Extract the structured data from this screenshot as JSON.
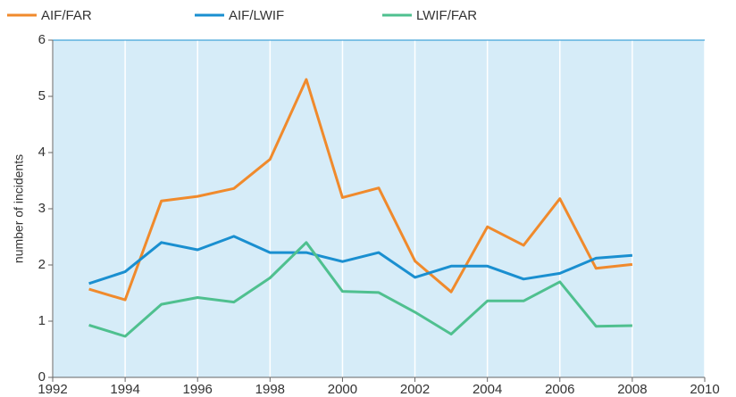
{
  "chart_data": {
    "type": "line",
    "y_label": "number of incidents",
    "x": [
      1993,
      1994,
      1995,
      1996,
      1997,
      1998,
      1999,
      2000,
      2001,
      2002,
      2003,
      2004,
      2005,
      2006,
      2007,
      2008
    ],
    "series": [
      {
        "name": "AIF/FAR",
        "color": "#f08a2c",
        "values": [
          1.57,
          1.38,
          3.14,
          3.22,
          3.36,
          3.88,
          5.3,
          3.2,
          3.37,
          2.07,
          1.52,
          2.68,
          2.35,
          3.18,
          1.94,
          2.01
        ]
      },
      {
        "name": "AIF/LWIF",
        "color": "#1a8fd0",
        "values": [
          1.67,
          1.88,
          2.4,
          2.27,
          2.51,
          2.22,
          2.22,
          2.06,
          2.22,
          1.78,
          1.98,
          1.98,
          1.75,
          1.85,
          2.12,
          2.17
        ]
      },
      {
        "name": "LWIF/FAR",
        "color": "#4fc08f",
        "values": [
          0.93,
          0.73,
          1.3,
          1.42,
          1.34,
          1.77,
          2.4,
          1.53,
          1.51,
          1.16,
          0.77,
          1.36,
          1.36,
          1.7,
          0.91,
          0.92
        ]
      }
    ],
    "xlim": [
      1992,
      2010
    ],
    "xticks": [
      1992,
      1994,
      1996,
      1998,
      2000,
      2002,
      2004,
      2006,
      2008,
      2010
    ],
    "ylim": [
      0,
      6
    ],
    "yticks": [
      0,
      1,
      2,
      3,
      4,
      5,
      6
    ],
    "grid": true,
    "legend": "top"
  }
}
